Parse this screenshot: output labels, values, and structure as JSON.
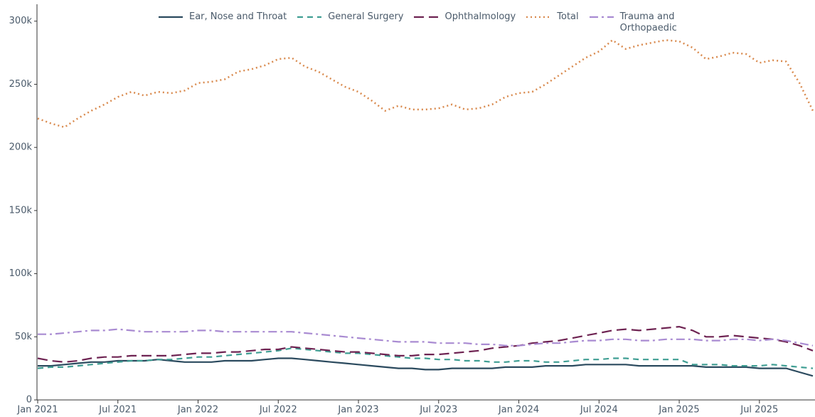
{
  "chart_data": {
    "type": "line",
    "x": [
      "2021-01",
      "2021-02",
      "2021-03",
      "2021-04",
      "2021-05",
      "2021-06",
      "2021-07",
      "2021-08",
      "2021-09",
      "2021-10",
      "2021-11",
      "2021-12",
      "2022-01",
      "2022-02",
      "2022-03",
      "2022-04",
      "2022-05",
      "2022-06",
      "2022-07",
      "2022-08",
      "2022-09",
      "2022-10",
      "2022-11",
      "2022-12",
      "2023-01",
      "2023-02",
      "2023-03",
      "2023-04",
      "2023-05",
      "2023-06",
      "2023-07",
      "2023-08",
      "2023-09",
      "2023-10",
      "2023-11",
      "2023-12",
      "2024-01",
      "2024-02",
      "2024-03",
      "2024-04",
      "2024-05",
      "2024-06",
      "2024-07",
      "2024-08",
      "2024-09",
      "2024-10",
      "2024-11",
      "2024-12",
      "2025-01",
      "2025-02",
      "2025-03",
      "2025-04",
      "2025-05",
      "2025-06",
      "2025-07",
      "2025-08",
      "2025-09",
      "2025-10",
      "2025-11"
    ],
    "xlim": [
      "2021-01",
      "2025-11"
    ],
    "xticks": [
      {
        "value": "2021-01",
        "label": "Jan 2021"
      },
      {
        "value": "2021-07",
        "label": "Jul 2021"
      },
      {
        "value": "2022-01",
        "label": "Jan 2022"
      },
      {
        "value": "2022-07",
        "label": "Jul 2022"
      },
      {
        "value": "2023-01",
        "label": "Jan 2023"
      },
      {
        "value": "2023-07",
        "label": "Jul 2023"
      },
      {
        "value": "2024-01",
        "label": "Jan 2024"
      },
      {
        "value": "2024-07",
        "label": "Jul 2024"
      },
      {
        "value": "2025-01",
        "label": "Jan 2025"
      },
      {
        "value": "2025-07",
        "label": "Jul 2025"
      }
    ],
    "ylim": [
      0,
      310000
    ],
    "yticks": [
      0,
      {
        "value": 50000,
        "label": "50k"
      },
      {
        "value": 100000,
        "label": "100k"
      },
      {
        "value": 150000,
        "label": "150k"
      },
      {
        "value": 200000,
        "label": "200k"
      },
      {
        "value": 250000,
        "label": "250k"
      },
      {
        "value": 300000,
        "label": "300k"
      }
    ],
    "series": [
      {
        "name": "Ear, Nose and Throat",
        "color": "#2b4a5e",
        "dash": "solid",
        "values": [
          27000,
          27000,
          28000,
          29000,
          30000,
          30000,
          31000,
          31000,
          31000,
          32000,
          31000,
          30000,
          30000,
          30000,
          31000,
          31000,
          31000,
          32000,
          33000,
          33000,
          32000,
          31000,
          30000,
          29000,
          28000,
          27000,
          26000,
          25000,
          25000,
          24000,
          24000,
          25000,
          25000,
          25000,
          25000,
          26000,
          26000,
          26000,
          27000,
          27000,
          27000,
          28000,
          28000,
          28000,
          28000,
          27000,
          27000,
          27000,
          27000,
          27000,
          26000,
          26000,
          26000,
          26000,
          25000,
          25000,
          25000,
          22000,
          19000
        ]
      },
      {
        "name": "General Surgery",
        "color": "#3f9e93",
        "dash": "dash",
        "values": [
          25000,
          26000,
          26000,
          27000,
          28000,
          29000,
          30000,
          31000,
          31000,
          32000,
          32000,
          33000,
          34000,
          34000,
          35000,
          36000,
          37000,
          38000,
          39000,
          41000,
          40000,
          39000,
          38000,
          37000,
          37000,
          36000,
          35000,
          34000,
          33000,
          33000,
          32000,
          32000,
          31000,
          31000,
          30000,
          30000,
          31000,
          31000,
          30000,
          30000,
          31000,
          32000,
          32000,
          33000,
          33000,
          32000,
          32000,
          32000,
          32000,
          28000,
          28000,
          28000,
          27000,
          27000,
          27000,
          28000,
          27000,
          26000,
          25000
        ]
      },
      {
        "name": "Ophthalmology",
        "color": "#6e2352",
        "dash": "longdash",
        "values": [
          33000,
          31000,
          30000,
          31000,
          33000,
          34000,
          34000,
          35000,
          35000,
          35000,
          35000,
          36000,
          37000,
          37000,
          38000,
          38000,
          39000,
          40000,
          40000,
          42000,
          41000,
          40000,
          39000,
          38000,
          38000,
          37000,
          36000,
          35000,
          35000,
          36000,
          36000,
          37000,
          38000,
          39000,
          41000,
          42000,
          43000,
          45000,
          46000,
          47000,
          49000,
          51000,
          53000,
          55000,
          56000,
          55000,
          56000,
          57000,
          58000,
          55000,
          50000,
          50000,
          51000,
          50000,
          49000,
          48000,
          46000,
          43000,
          39000
        ]
      },
      {
        "name": "Total",
        "color": "#d98a4e",
        "dash": "dot",
        "values": [
          223000,
          219000,
          216000,
          223000,
          229000,
          234000,
          240000,
          244000,
          241000,
          244000,
          243000,
          245000,
          251000,
          252000,
          254000,
          260000,
          262000,
          265000,
          270000,
          271000,
          264000,
          260000,
          254000,
          248000,
          244000,
          237000,
          229000,
          233000,
          230000,
          230000,
          231000,
          234000,
          230000,
          231000,
          234000,
          240000,
          243000,
          244000,
          250000,
          257000,
          264000,
          271000,
          276000,
          285000,
          278000,
          281000,
          283000,
          285000,
          284000,
          279000,
          270000,
          272000,
          275000,
          274000,
          267000,
          269000,
          268000,
          251000,
          229000
        ]
      },
      {
        "name": "Trauma and Orthopaedic",
        "color": "#a98bd2",
        "dash": "dashdot",
        "values": [
          52000,
          52000,
          53000,
          54000,
          55000,
          55000,
          56000,
          55000,
          54000,
          54000,
          54000,
          54000,
          55000,
          55000,
          54000,
          54000,
          54000,
          54000,
          54000,
          54000,
          53000,
          52000,
          51000,
          50000,
          49000,
          48000,
          47000,
          46000,
          46000,
          46000,
          45000,
          45000,
          45000,
          44000,
          44000,
          43000,
          43000,
          44000,
          45000,
          45000,
          46000,
          47000,
          47000,
          48000,
          48000,
          47000,
          47000,
          48000,
          48000,
          48000,
          47000,
          47000,
          48000,
          48000,
          47000,
          48000,
          47000,
          45000,
          43000
        ]
      }
    ]
  }
}
